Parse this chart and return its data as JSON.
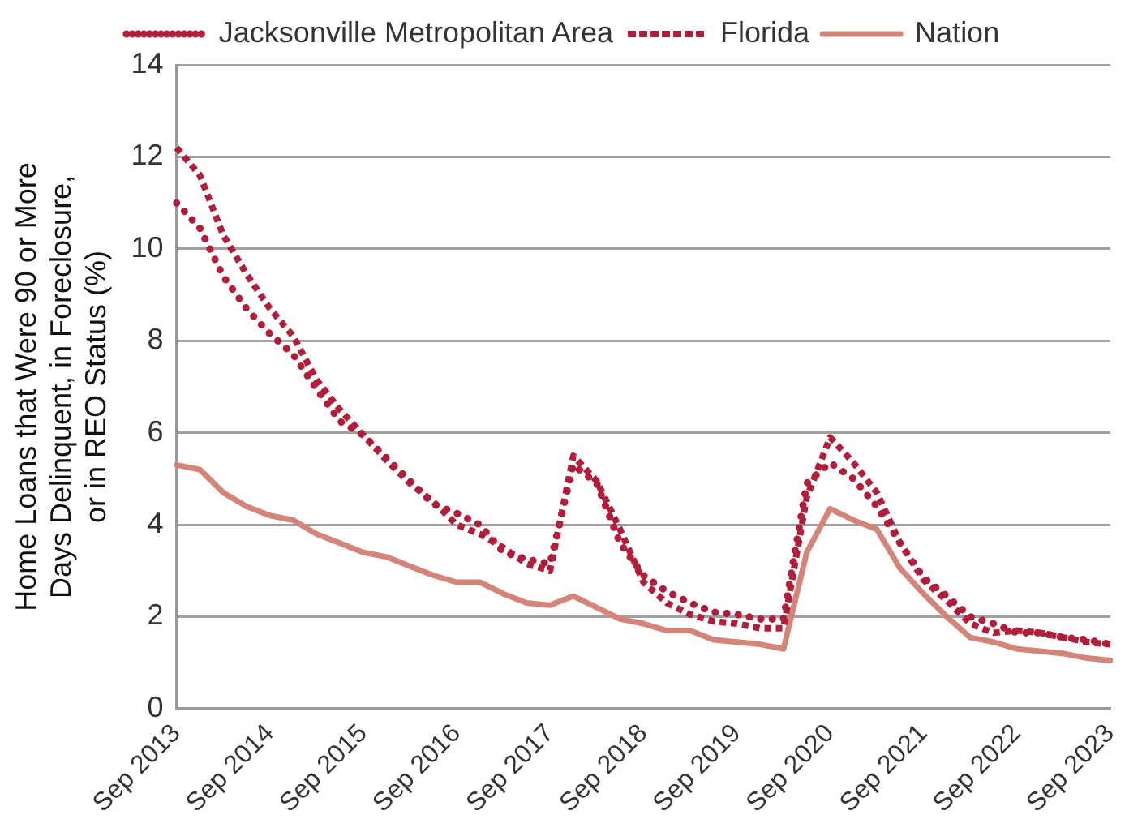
{
  "chart_data": {
    "type": "line",
    "ylabel": "Home Loans that Were 90 or More Days Delinquent, in Foreclosure, or in REO Status (%)",
    "categories": [
      "Sep 2013",
      null,
      null,
      null,
      "Sep 2014",
      null,
      null,
      null,
      "Sep 2015",
      null,
      null,
      null,
      "Sep 2016",
      null,
      null,
      null,
      "Sep 2017",
      null,
      null,
      null,
      "Sep 2018",
      null,
      null,
      null,
      "Sep 2019",
      null,
      null,
      null,
      "Sep 2020",
      null,
      null,
      null,
      "Sep 2021",
      null,
      null,
      null,
      "Sep 2022",
      null,
      null,
      null,
      "Sep 2023"
    ],
    "series": [
      {
        "name": "Jacksonville Metropolitan Area",
        "color": "#b01e3c",
        "line_style": "dotted",
        "values": [
          11.0,
          10.45,
          9.4,
          8.7,
          8.15,
          7.7,
          6.95,
          6.25,
          5.95,
          5.45,
          4.95,
          4.45,
          4.25,
          4.0,
          3.4,
          3.25,
          3.15,
          5.3,
          4.9,
          3.6,
          2.9,
          2.55,
          2.3,
          2.1,
          2.05,
          1.95,
          1.95,
          4.9,
          5.35,
          5.0,
          4.4,
          3.6,
          2.85,
          2.45,
          2.0,
          1.85,
          1.65,
          1.65,
          1.55,
          1.5,
          1.4
        ]
      },
      {
        "name": "Florida",
        "color": "#b01e3c",
        "line_style": "dashed",
        "values": [
          12.2,
          11.6,
          10.3,
          9.45,
          8.7,
          8.1,
          7.15,
          6.5,
          5.95,
          5.4,
          4.9,
          4.5,
          4.0,
          3.8,
          3.5,
          3.15,
          3.0,
          5.5,
          4.95,
          3.9,
          2.75,
          2.3,
          2.05,
          1.9,
          1.85,
          1.75,
          1.75,
          4.6,
          5.9,
          5.35,
          4.7,
          3.6,
          2.8,
          2.35,
          1.85,
          1.65,
          1.7,
          1.65,
          1.55,
          1.45,
          1.4
        ]
      },
      {
        "name": "Nation",
        "color": "#d4857a",
        "line_style": "solid",
        "values": [
          5.3,
          5.2,
          4.7,
          4.4,
          4.2,
          4.1,
          3.8,
          3.6,
          3.4,
          3.3,
          3.1,
          2.9,
          2.75,
          2.75,
          2.5,
          2.3,
          2.25,
          2.45,
          2.2,
          1.95,
          1.85,
          1.7,
          1.7,
          1.5,
          1.45,
          1.4,
          1.3,
          3.4,
          4.35,
          4.1,
          3.9,
          3.05,
          2.5,
          2.0,
          1.55,
          1.45,
          1.3,
          1.25,
          1.2,
          1.1,
          1.05
        ]
      }
    ],
    "ylim": [
      0,
      14
    ],
    "yticks": [
      0,
      2,
      4,
      6,
      8,
      10,
      12,
      14
    ],
    "grid": "y",
    "legend": "top",
    "marker": "none"
  }
}
